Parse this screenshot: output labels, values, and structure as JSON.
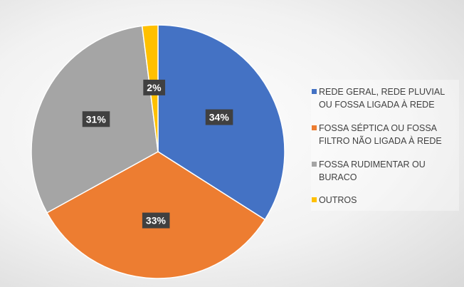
{
  "chart_data": {
    "type": "pie",
    "series": [
      {
        "name": "REDE GERAL, REDE PLUVIAL OU FOSSA LIGADA À REDE",
        "color": "#4472c4"
      },
      {
        "name": "FOSSA SÉPTICA OU FOSSA FILTRO NÃO LIGADA À REDE",
        "color": "#ed7d31"
      },
      {
        "name": "FOSSA RUDIMENTAR OU BURACO",
        "color": "#a5a5a5"
      },
      {
        "name": "OUTROS",
        "color": "#ffc000"
      }
    ],
    "values": [
      34,
      33,
      31,
      2
    ],
    "value_labels": [
      "34%",
      "33%",
      "31%",
      "2%"
    ],
    "legend": "right"
  }
}
